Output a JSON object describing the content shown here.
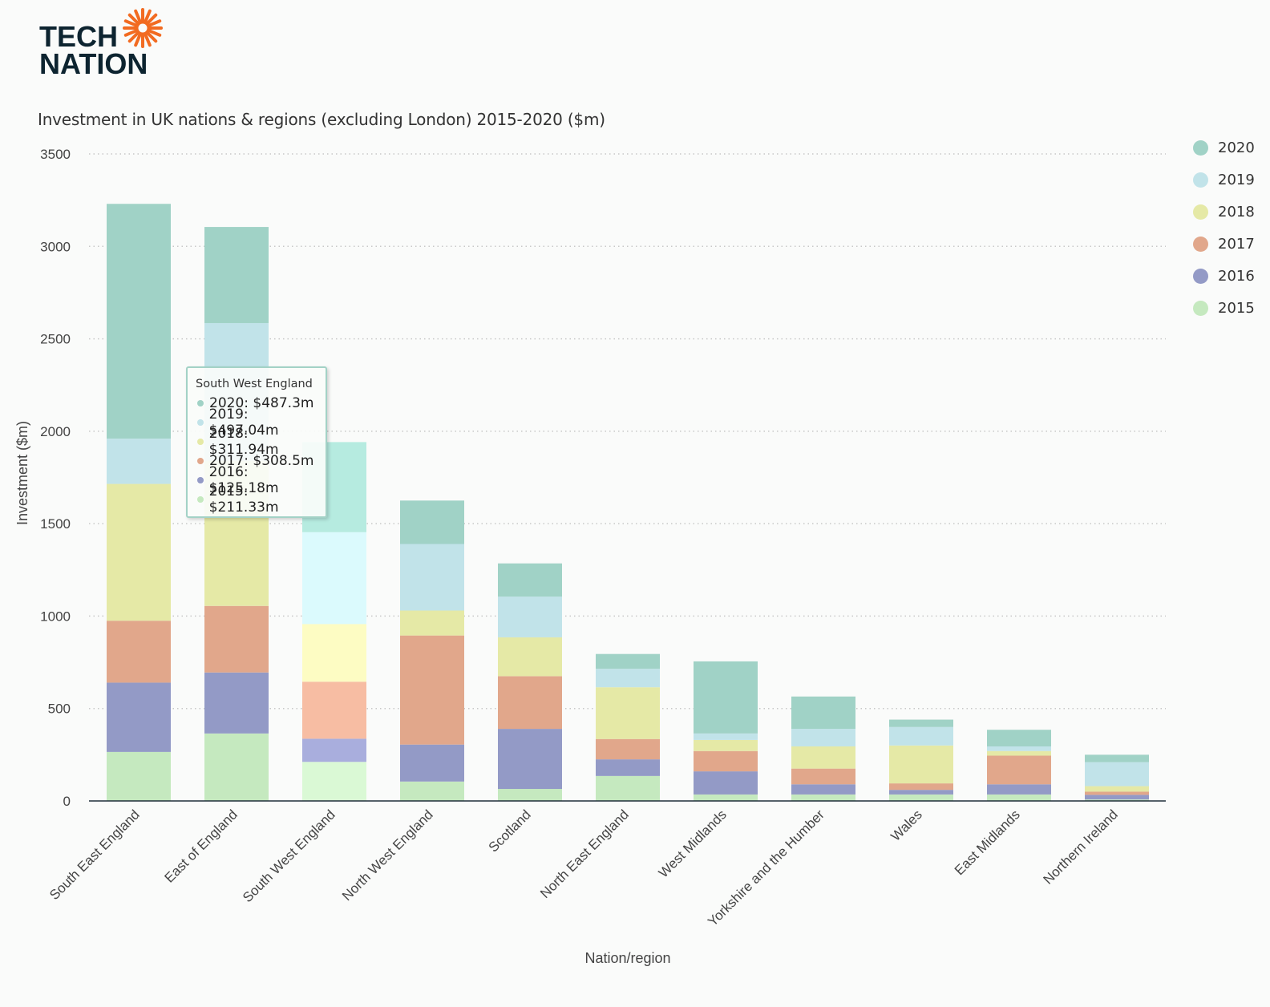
{
  "logo": {
    "line1": "TECH",
    "line2": "NATION",
    "accent": "#f26b21",
    "text_color": "#0d2430"
  },
  "chart_data": {
    "type": "bar",
    "stacked": true,
    "title": "Investment in UK nations & regions (excluding London) 2015-2020 ($m)",
    "xlabel": "Nation/region",
    "ylabel": "Investment ($m)",
    "ylim": [
      0,
      3500
    ],
    "yticks": [
      0,
      500,
      1000,
      1500,
      2000,
      2500,
      3000,
      3500
    ],
    "grid": true,
    "legend_position": "right",
    "categories": [
      "South East England",
      "East of England",
      "South West England",
      "North West England",
      "Scotland",
      "North East England",
      "West Midlands",
      "Yorkshire and the Humber",
      "Wales",
      "East Midlands",
      "Northern Ireland"
    ],
    "series": [
      {
        "name": "2015",
        "color": "#c5e9bf",
        "values": [
          265,
          365,
          211.33,
          105,
          65,
          135,
          35,
          35,
          35,
          35,
          8
        ]
      },
      {
        "name": "2016",
        "color": "#939ac6",
        "values": [
          375,
          330,
          125.18,
          200,
          325,
          90,
          125,
          55,
          25,
          55,
          25
        ]
      },
      {
        "name": "2017",
        "color": "#e1a78b",
        "values": [
          335,
          360,
          308.5,
          590,
          285,
          110,
          110,
          85,
          35,
          155,
          17
        ]
      },
      {
        "name": "2018",
        "color": "#e5e9a6",
        "values": [
          740,
          785,
          311.94,
          135,
          210,
          280,
          60,
          120,
          205,
          25,
          30
        ]
      },
      {
        "name": "2019",
        "color": "#c1e3e9",
        "values": [
          245,
          745,
          497.04,
          360,
          220,
          100,
          35,
          95,
          100,
          25,
          130
        ]
      },
      {
        "name": "2020",
        "color": "#a0d2c6",
        "values": [
          1270,
          520,
          487.3,
          235,
          180,
          80,
          390,
          175,
          40,
          90,
          40
        ]
      }
    ],
    "highlight_index": 2,
    "highlight_colors": [
      "#daf9d5",
      "#a9aedd",
      "#f7bda3",
      "#fdfcc3",
      "#dbfafd",
      "#b6ebe0"
    ]
  },
  "tooltip": {
    "title": "South West England",
    "rows": [
      {
        "text": "2020: $487.3m",
        "color": "#a0d2c6"
      },
      {
        "text": "2019: $497.04m",
        "color": "#c1e3e9"
      },
      {
        "text": "2018: $311.94m",
        "color": "#e5e9a6"
      },
      {
        "text": "2017: $308.5m",
        "color": "#e1a78b"
      },
      {
        "text": "2016: $125.18m",
        "color": "#939ac6"
      },
      {
        "text": "2015: $211.33m",
        "color": "#c5e9bf"
      }
    ]
  }
}
